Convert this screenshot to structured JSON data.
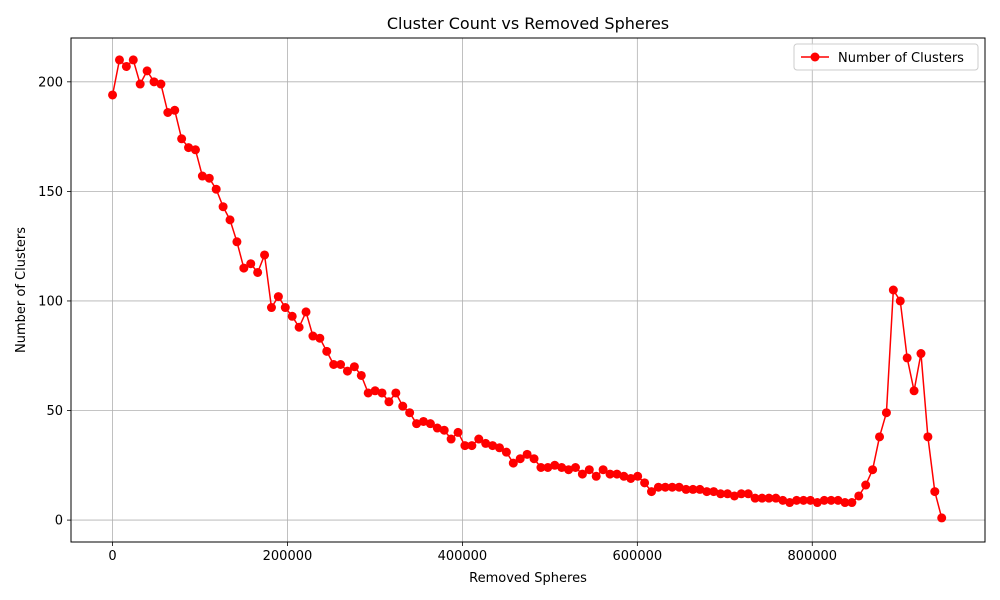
{
  "chart_data": {
    "type": "line",
    "title": "Cluster Count vs Removed Spheres",
    "xlabel": "Removed Spheres",
    "ylabel": "Number of Clusters",
    "xlim": [
      -47500,
      997500
    ],
    "ylim": [
      -10,
      220
    ],
    "x_ticks": [
      0,
      200000,
      400000,
      600000,
      800000
    ],
    "y_ticks": [
      0,
      50,
      100,
      150,
      200
    ],
    "grid": true,
    "legend_position": "top-right",
    "colors": {
      "series": "#ff0000"
    },
    "series": [
      {
        "name": "Number of Clusters",
        "marker": "circle",
        "x": [
          0,
          7900,
          15800,
          23700,
          31600,
          39500,
          47400,
          55300,
          63200,
          71100,
          79000,
          86900,
          94800,
          102700,
          110600,
          118500,
          126400,
          134300,
          142200,
          150100,
          158000,
          165900,
          173800,
          181700,
          189600,
          197500,
          205400,
          213300,
          221200,
          229100,
          237000,
          244900,
          252800,
          260700,
          268600,
          276500,
          284400,
          292300,
          300200,
          308100,
          316000,
          323900,
          331800,
          339700,
          347600,
          355500,
          363400,
          371300,
          379200,
          387100,
          395000,
          402900,
          410800,
          418700,
          426600,
          434500,
          442400,
          450300,
          458200,
          466100,
          474000,
          481900,
          489800,
          497700,
          505600,
          513500,
          521400,
          529300,
          537200,
          545100,
          553000,
          560900,
          568800,
          576700,
          584600,
          592500,
          600400,
          608300,
          616200,
          624100,
          632000,
          639900,
          647800,
          655700,
          663600,
          671500,
          679400,
          687300,
          695200,
          703100,
          711000,
          718900,
          726800,
          734700,
          742600,
          750500,
          758400,
          766300,
          774200,
          782100,
          790000,
          797900,
          805800,
          813700,
          821600,
          829500,
          837400,
          845300,
          853200,
          861100,
          869000,
          876900,
          884800,
          892700,
          900600,
          908500,
          916400,
          924300,
          932200,
          940100,
          948000
        ],
        "y": [
          194,
          210,
          207,
          210,
          199,
          205,
          200,
          199,
          186,
          187,
          174,
          170,
          169,
          157,
          156,
          151,
          143,
          137,
          127,
          115,
          117,
          113,
          121,
          97,
          102,
          97,
          93,
          88,
          95,
          84,
          83,
          77,
          71,
          71,
          68,
          70,
          66,
          58,
          59,
          58,
          54,
          58,
          52,
          49,
          44,
          45,
          44,
          42,
          41,
          37,
          40,
          34,
          34,
          37,
          35,
          34,
          33,
          31,
          26,
          28,
          30,
          28,
          24,
          24,
          25,
          24,
          23,
          24,
          21,
          23,
          20,
          23,
          21,
          21,
          20,
          19,
          20,
          17,
          13,
          15,
          15,
          15,
          15,
          14,
          14,
          14,
          13,
          13,
          12,
          12,
          11,
          12,
          12,
          10,
          10,
          10,
          10,
          9,
          8,
          9,
          9,
          9,
          8,
          9,
          9,
          9,
          8,
          8,
          11,
          16,
          23,
          38,
          49,
          105,
          100,
          74,
          59,
          76,
          38,
          13,
          1
        ]
      }
    ]
  }
}
